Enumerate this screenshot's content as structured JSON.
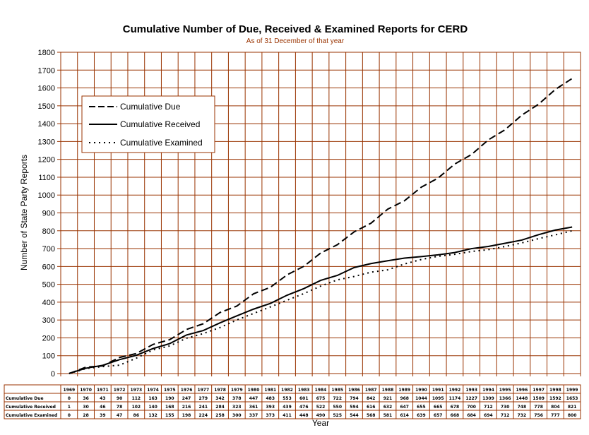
{
  "chart_data": {
    "type": "line",
    "title": "Cumulative Number of Due, Received & Examined Reports for CERD",
    "subtitle": "As of 31 December of that year",
    "xlabel": "Year",
    "ylabel": "Number of State Party Reports",
    "ylim": [
      0,
      1800
    ],
    "ytick_step": 100,
    "grid": true,
    "legend_position": "top-left",
    "categories": [
      "1969",
      "1970",
      "1971",
      "1972",
      "1973",
      "1974",
      "1975",
      "1976",
      "1977",
      "1978",
      "1979",
      "1980",
      "1981",
      "1982",
      "1983",
      "1984",
      "1985",
      "1986",
      "1987",
      "1988",
      "1989",
      "1990",
      "1991",
      "1992",
      "1993",
      "1994",
      "1995",
      "1996",
      "1997",
      "1998",
      "1999"
    ],
    "series": [
      {
        "name": "Cumulative Due",
        "legend": "Cumulative Due",
        "table_label": "Cumulative Due",
        "dash": "dashed",
        "values": [
          0,
          36,
          43,
          90,
          112,
          163,
          190,
          247,
          279,
          342,
          378,
          447,
          483,
          553,
          601,
          675,
          722,
          794,
          842,
          921,
          968,
          1044,
          1095,
          1174,
          1227,
          1309,
          1366,
          1448,
          1509,
          1592,
          1653
        ]
      },
      {
        "name": "Cumulative Received",
        "legend": "Cumulative Received",
        "table_label": "Cumulative Received",
        "dash": "solid",
        "values": [
          1,
          30,
          46,
          78,
          102,
          140,
          168,
          216,
          241,
          284,
          323,
          361,
          393,
          439,
          476,
          522,
          550,
          594,
          616,
          632,
          647,
          655,
          665,
          678,
          700,
          712,
          730,
          748,
          778,
          804,
          821
        ]
      },
      {
        "name": "Cumulative Examined",
        "legend": "Cumulative Examined",
        "table_label": "Cumulative Examined",
        "dash": "dotted",
        "values": [
          0,
          28,
          39,
          47,
          86,
          132,
          155,
          198,
          224,
          258,
          300,
          337,
          373,
          411,
          448,
          490,
          525,
          544,
          568,
          581,
          614,
          639,
          657,
          668,
          684,
          694,
          712,
          732,
          756,
          777,
          800
        ]
      }
    ],
    "colors": {
      "grid": "#993300",
      "line": "#000000",
      "background": "#ffffff"
    }
  }
}
